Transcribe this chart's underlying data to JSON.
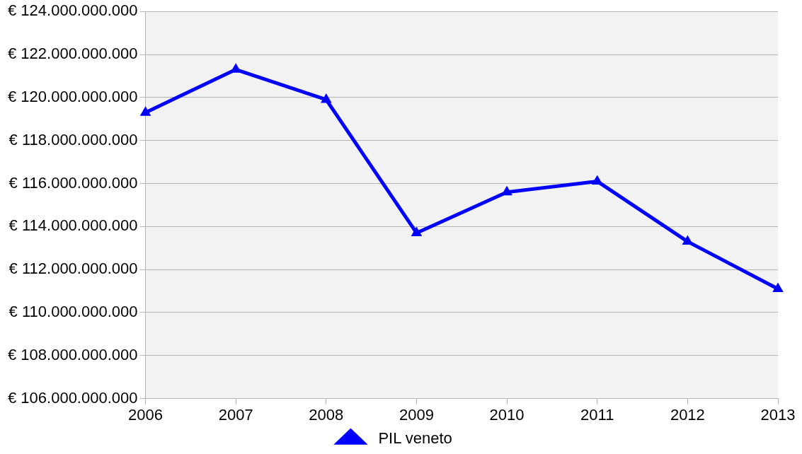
{
  "chart_data": {
    "type": "line",
    "categories": [
      "2006",
      "2007",
      "2008",
      "2009",
      "2010",
      "2011",
      "2012",
      "2013"
    ],
    "series": [
      {
        "name": "PIL veneto",
        "color": "#0000ff",
        "values": [
          119300000000,
          121300000000,
          119900000000,
          113700000000,
          115600000000,
          116100000000,
          113300000000,
          111100000000
        ]
      }
    ],
    "ylim": [
      106000000000,
      124000000000
    ],
    "yticks": [
      {
        "value": 106000000000,
        "label": "€ 106.000.000.000"
      },
      {
        "value": 108000000000,
        "label": "€ 108.000.000.000"
      },
      {
        "value": 110000000000,
        "label": "€ 110.000.000.000"
      },
      {
        "value": 112000000000,
        "label": "€ 112.000.000.000"
      },
      {
        "value": 114000000000,
        "label": "€ 114.000.000.000"
      },
      {
        "value": 116000000000,
        "label": "€ 116.000.000.000"
      },
      {
        "value": 118000000000,
        "label": "€ 118.000.000.000"
      },
      {
        "value": 120000000000,
        "label": "€ 120.000.000.000"
      },
      {
        "value": 122000000000,
        "label": "€ 122.000.000.000"
      },
      {
        "value": 124000000000,
        "label": "€ 124.000.000.000"
      }
    ],
    "grid": "y",
    "legend": "bottom",
    "marker": "triangle",
    "line_style": "solid"
  }
}
